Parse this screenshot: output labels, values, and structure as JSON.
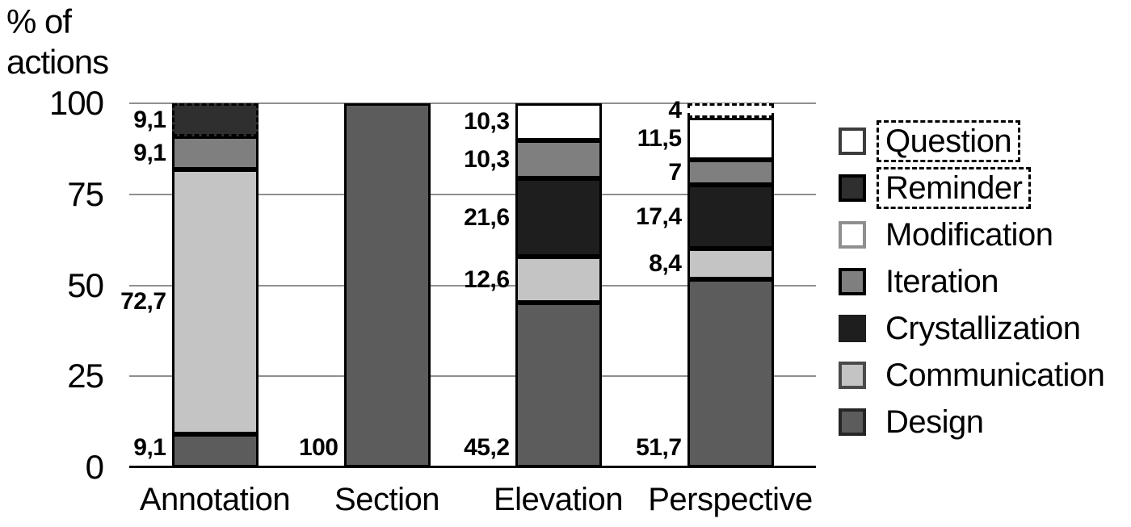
{
  "axis": {
    "title_line1": "% of",
    "title_line2": "actions"
  },
  "chart_data": {
    "type": "bar",
    "stacked": true,
    "title": "% of actions",
    "ylabel": "% of actions",
    "xlabel": "",
    "ylim": [
      0,
      100
    ],
    "y_ticks": [
      0,
      25,
      50,
      75,
      100
    ],
    "grid": true,
    "legend_position": "right",
    "categories": [
      "Annotation",
      "Section",
      "Elevation",
      "Perspective"
    ],
    "series": [
      {
        "name": "Design",
        "color": "#5c5c5c",
        "dashed": false,
        "values": [
          9.1,
          100,
          45.2,
          51.7
        ],
        "labels": [
          "9,1",
          "100",
          "45,2",
          "51,7"
        ]
      },
      {
        "name": "Communication",
        "color": "#c4c4c4",
        "dashed": false,
        "values": [
          72.7,
          0,
          12.6,
          8.4
        ],
        "labels": [
          "72,7",
          "",
          "12,6",
          "8,4"
        ]
      },
      {
        "name": "Crystallization",
        "color": "#1e1e1e",
        "dashed": false,
        "values": [
          0,
          0,
          21.6,
          17.4
        ],
        "labels": [
          "",
          "",
          "21,6",
          "17,4"
        ]
      },
      {
        "name": "Iteration",
        "color": "#7f7f7f",
        "dashed": false,
        "values": [
          9.1,
          0,
          10.3,
          7
        ],
        "labels": [
          "9,1",
          "",
          "10,3",
          "7"
        ]
      },
      {
        "name": "Modification",
        "color": "#ffffff",
        "dashed": false,
        "values": [
          0,
          0,
          10.3,
          11.5
        ],
        "labels": [
          "",
          "",
          "10,3",
          "11,5"
        ]
      },
      {
        "name": "Reminder",
        "color": "#2f2f2f",
        "dashed": true,
        "values": [
          9.1,
          0,
          0,
          0
        ],
        "labels": [
          "9,1",
          "",
          "",
          ""
        ]
      },
      {
        "name": "Question",
        "color": "#ffffff",
        "dashed": true,
        "values": [
          0,
          0,
          0,
          4
        ],
        "labels": [
          "",
          "",
          "",
          "4"
        ]
      }
    ],
    "legend": [
      {
        "label": "Question",
        "fill": "#ffffff",
        "border": "#3c3c3c",
        "dashed_label": true
      },
      {
        "label": "Reminder",
        "fill": "#2f2f2f",
        "border": "#000000",
        "dashed_label": true
      },
      {
        "label": "Modification",
        "fill": "#ffffff",
        "border": "#8f8f8f",
        "dashed_label": false
      },
      {
        "label": "Iteration",
        "fill": "#7f7f7f",
        "border": "#000000",
        "dashed_label": false
      },
      {
        "label": "Crystallization",
        "fill": "#1e1e1e",
        "border": "#1e1e1e",
        "dashed_label": false
      },
      {
        "label": "Communication",
        "fill": "#c4c4c4",
        "border": "#4a4a4a",
        "dashed_label": false
      },
      {
        "label": "Design",
        "fill": "#5c5c5c",
        "border": "#262626",
        "dashed_label": false
      }
    ],
    "colors": {
      "gridline": "#8f8f8f",
      "axis": "#000000",
      "background": "#ffffff"
    }
  }
}
